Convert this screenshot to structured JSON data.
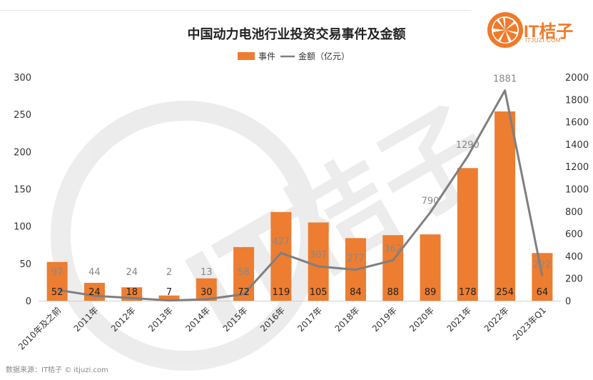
{
  "title": "中国动力电池行业投资交易事件及金额",
  "source": "数据来源：IT桔子 © itjuzi.com",
  "logo": {
    "text": "IT桔子",
    "sub": "ITJUZI.COM",
    "icon": "orange-slice-icon",
    "color": "#f07a2a"
  },
  "watermark": "IT桔子",
  "chart_data": {
    "type": "bar",
    "categories": [
      "2010年及之前",
      "2011年",
      "2012年",
      "2013年",
      "2014年",
      "2015年",
      "2016年",
      "2017年",
      "2018年",
      "2019年",
      "2020年",
      "2021年",
      "2022年",
      "2023年Q1"
    ],
    "series": [
      {
        "name": "事件",
        "type": "bar",
        "axis": "left",
        "color": "#ed7d31",
        "values": [
          52,
          24,
          18,
          7,
          30,
          72,
          119,
          105,
          84,
          88,
          89,
          178,
          254,
          64
        ]
      },
      {
        "name": "金额（亿元）",
        "type": "line",
        "axis": "right",
        "color": "#7f7f7f",
        "values": [
          97,
          44,
          24,
          2,
          13,
          58,
          427,
          307,
          277,
          362,
          790,
          1290,
          1881,
          222
        ]
      }
    ],
    "y_left": {
      "min": 0,
      "max": 300,
      "ticks": [
        0,
        50,
        100,
        150,
        200,
        250,
        300
      ]
    },
    "y_right": {
      "min": 0,
      "max": 2000,
      "ticks": [
        0,
        200,
        400,
        600,
        800,
        1000,
        1200,
        1400,
        1600,
        1800,
        2000
      ]
    },
    "legend": {
      "position": "top-center",
      "items": [
        "事件",
        "金额（亿元）"
      ]
    },
    "grid": false
  }
}
